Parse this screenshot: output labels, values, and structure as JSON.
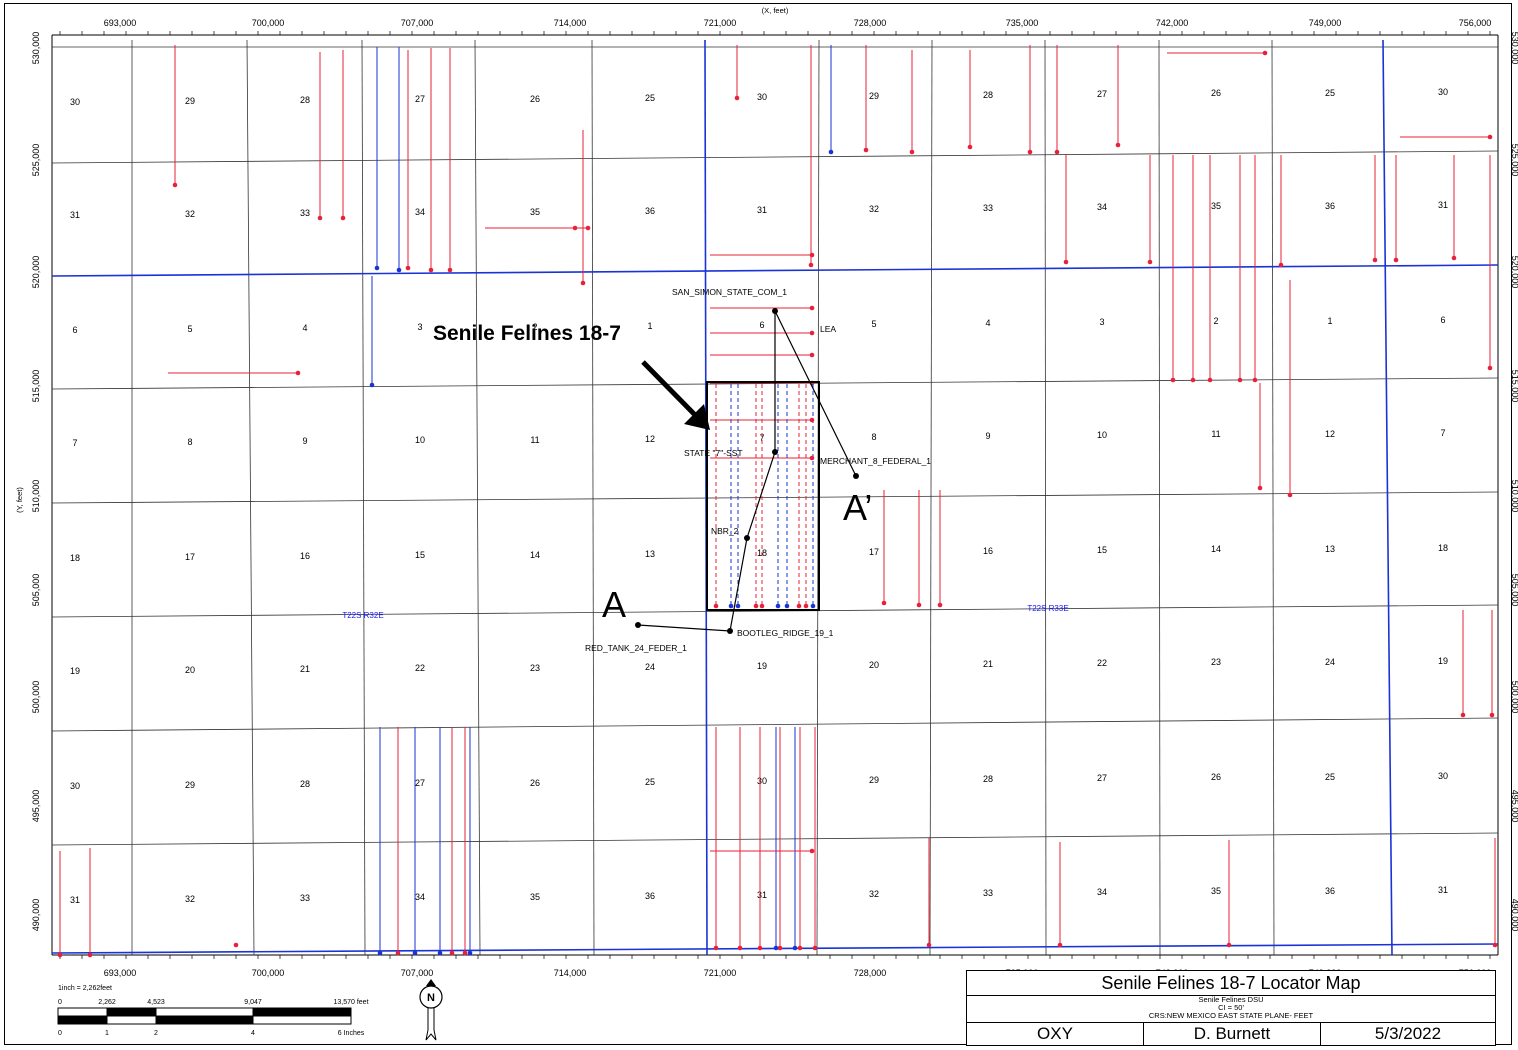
{
  "axes": {
    "x_label": "(X, feet)",
    "y_label": "(Y, feet)",
    "x_ticks": [
      "693,000",
      "700,000",
      "707,000",
      "714,000",
      "721,000",
      "728,000",
      "735,000",
      "742,000",
      "749,000",
      "756,000"
    ],
    "y_ticks": [
      "530,000",
      "525,000",
      "520,000",
      "515,000",
      "510,000",
      "505,000",
      "500,000",
      "495,000",
      "490,000"
    ]
  },
  "sections": [
    [
      "30",
      "29",
      "28",
      "27",
      "26",
      "25",
      "30",
      "29",
      "28",
      "27",
      "26",
      "25",
      "30"
    ],
    [
      "31",
      "32",
      "33",
      "34",
      "35",
      "36",
      "31",
      "32",
      "33",
      "34",
      "35",
      "36",
      "31"
    ],
    [
      "6",
      "5",
      "4",
      "3",
      "2",
      "1",
      "6",
      "5",
      "4",
      "3",
      "2",
      "1",
      "6"
    ],
    [
      "7",
      "8",
      "9",
      "10",
      "11",
      "12",
      "7",
      "8",
      "9",
      "10",
      "11",
      "12",
      "7"
    ],
    [
      "18",
      "17",
      "16",
      "15",
      "14",
      "13",
      "18",
      "17",
      "16",
      "15",
      "14",
      "13",
      "18"
    ],
    [
      "19",
      "20",
      "21",
      "22",
      "23",
      "24",
      "19",
      "20",
      "21",
      "22",
      "23",
      "24",
      "19"
    ],
    [
      "30",
      "29",
      "28",
      "27",
      "26",
      "25",
      "30",
      "29",
      "28",
      "27",
      "26",
      "25",
      "30"
    ],
    [
      "31",
      "32",
      "33",
      "34",
      "35",
      "36",
      "31",
      "32",
      "33",
      "34",
      "35",
      "36",
      "31"
    ]
  ],
  "wells": {
    "san_simon": "SAN_SIMON_STATE_COM_1",
    "lea": "LEA",
    "state7": "STATE \"7\"-SST",
    "merchant": "MERCHANT_8_FEDERAL_1",
    "nbr": "NBR_2",
    "bootleg": "BOOTLEG_RIDGE_19_1",
    "red_tank": "RED_TANK_24_FEDER_1"
  },
  "townships": {
    "west": "T22S R32E",
    "east": "T22S R33E"
  },
  "annotations": {
    "unit_label": "Senile Felines 18-7",
    "section_a": "A",
    "section_a_prime": "A’"
  },
  "scale_bar": {
    "ratio": "1inch = 2,262feet",
    "feet_ticks": [
      "0",
      "2,262",
      "4,523",
      "9,047",
      "13,570 feet"
    ],
    "inch_ticks": [
      "0",
      "1",
      "2",
      "4",
      "6 Inches"
    ]
  },
  "north_arrow": "N",
  "title_block": {
    "title": "Senile Felines 18-7 Locator Map",
    "line1": "Senile Felines DSU",
    "line2": "CI = 50'",
    "line3": "CRS:NEW MEXICO EAST STATE PLANE- FEET",
    "company": "OXY",
    "author": "D. Burnett",
    "date": "5/3/2022"
  },
  "colors": {
    "well_path": "#e8213a",
    "blue_line": "#1a33d6",
    "grid": "#333333"
  }
}
